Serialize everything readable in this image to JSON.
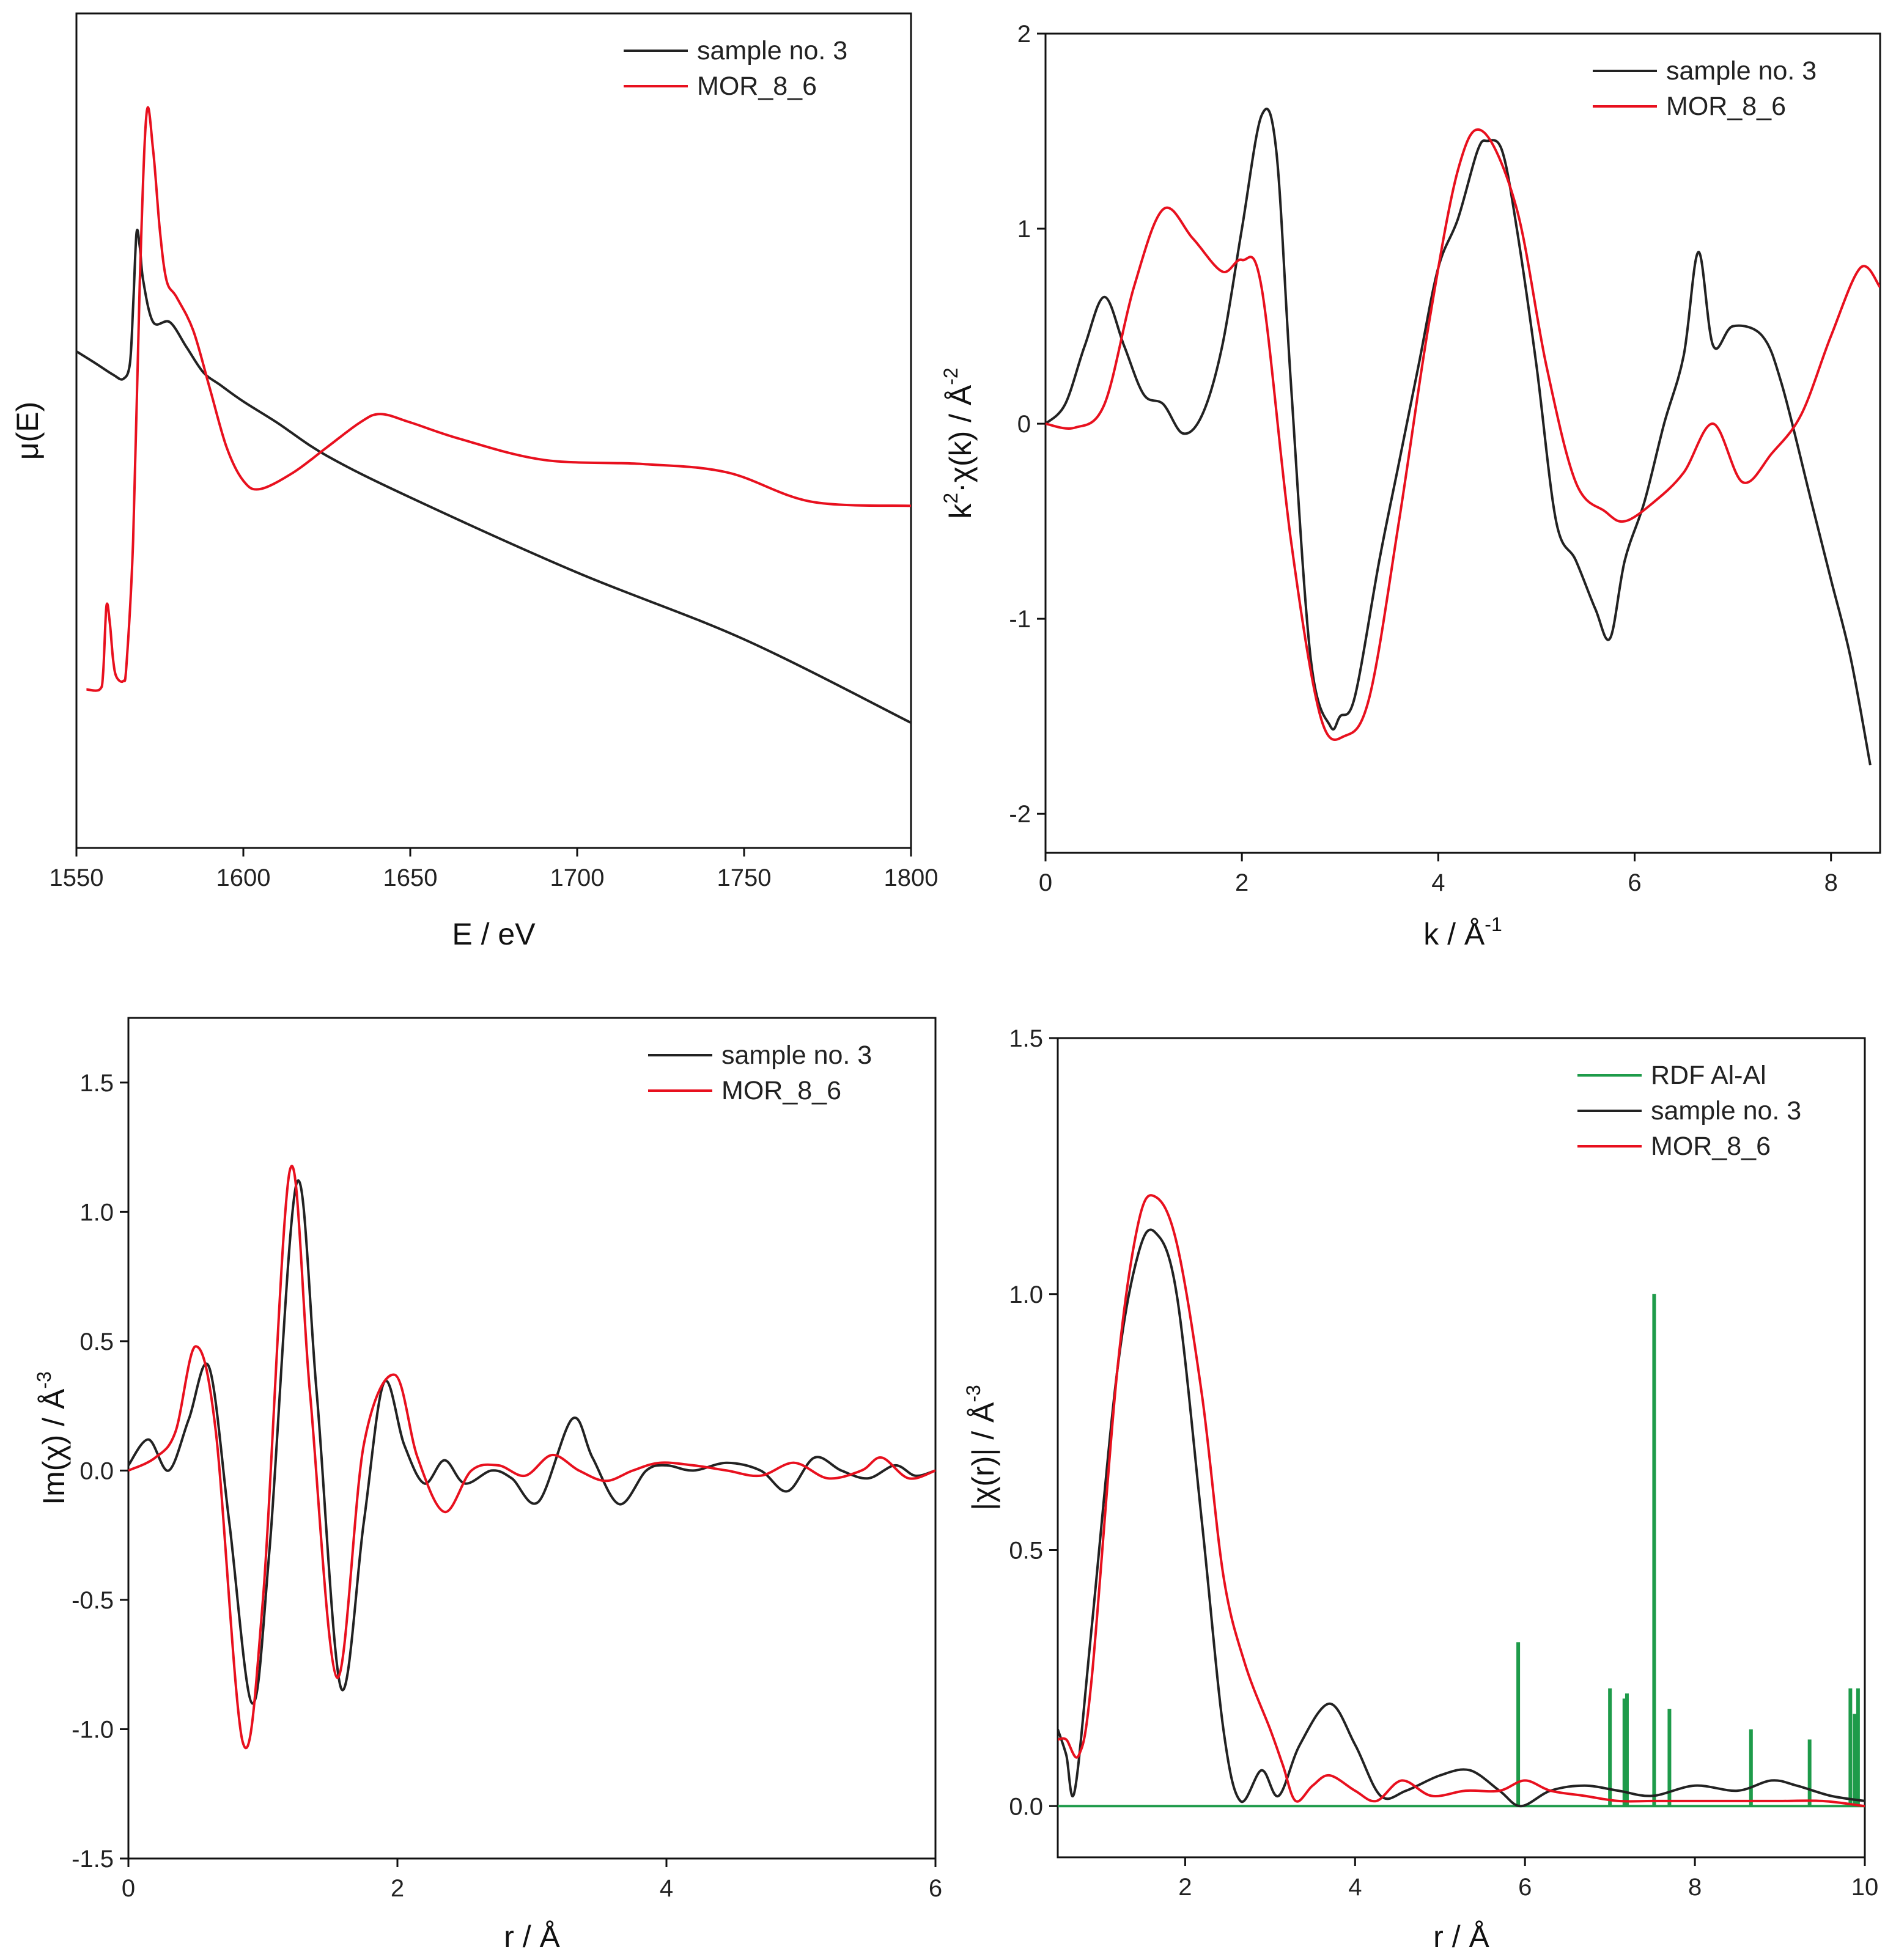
{
  "chart_data": [
    {
      "id": "xanes",
      "type": "line",
      "title": "",
      "xlabel": "E / eV",
      "ylabel": "μ(E)",
      "xlim": [
        1550,
        1800
      ],
      "ylim": [
        0,
        1.0
      ],
      "xticks": [
        1550,
        1600,
        1650,
        1700,
        1750,
        1800
      ],
      "xtick_labels": [
        "1550",
        "1600",
        "1650",
        "1700",
        "1750",
        "1800"
      ],
      "yticks": [],
      "ytick_labels": [],
      "legend": "top-right",
      "series": [
        {
          "name": "sample no. 3",
          "color": "#222222",
          "x": [
            1550,
            1556,
            1561,
            1564,
            1566,
            1567,
            1568,
            1569,
            1570,
            1573,
            1578,
            1583,
            1588,
            1593,
            1600,
            1610,
            1625,
            1650,
            1700,
            1750,
            1800
          ],
          "y": [
            0.595,
            0.58,
            0.567,
            0.562,
            0.58,
            0.65,
            0.737,
            0.72,
            0.68,
            0.63,
            0.63,
            0.6,
            0.57,
            0.555,
            0.535,
            0.51,
            0.47,
            0.42,
            0.33,
            0.25,
            0.15
          ]
        },
        {
          "name": "MOR_8_6",
          "color": "#e8101e",
          "x": [
            1553,
            1557,
            1558,
            1559,
            1560,
            1561,
            1562,
            1564,
            1565,
            1567,
            1569,
            1571,
            1573,
            1575,
            1577,
            1580,
            1585,
            1590,
            1595,
            1600,
            1605,
            1615,
            1625,
            1635,
            1641,
            1650,
            1665,
            1690,
            1720,
            1745,
            1770,
            1800
          ],
          "y": [
            0.19,
            0.19,
            0.21,
            0.29,
            0.27,
            0.225,
            0.205,
            0.2,
            0.22,
            0.37,
            0.68,
            0.88,
            0.835,
            0.74,
            0.68,
            0.66,
            0.62,
            0.55,
            0.48,
            0.44,
            0.43,
            0.45,
            0.48,
            0.51,
            0.52,
            0.51,
            0.49,
            0.465,
            0.46,
            0.45,
            0.415,
            0.41
          ]
        }
      ]
    },
    {
      "id": "kspace",
      "type": "line",
      "title": "",
      "xlabel": "k / Å",
      "xlabel_sup": "-1",
      "ylabel": "k",
      "ylabel_sup": "2",
      "ylabel_rest": "·χ(k) / Å",
      "ylabel_sup2": "-2",
      "xlim": [
        0,
        8.5
      ],
      "ylim": [
        -2.2,
        2.0
      ],
      "xticks": [
        0,
        2,
        4,
        6,
        8
      ],
      "xtick_labels": [
        "0",
        "2",
        "4",
        "6",
        "8"
      ],
      "yticks": [
        -2,
        -1,
        0,
        1,
        2
      ],
      "ytick_labels": [
        "-2",
        "-1",
        "0",
        "1",
        "2"
      ],
      "legend": "top-right",
      "series": [
        {
          "name": "sample no. 3",
          "color": "#222222",
          "x": [
            0,
            0.2,
            0.4,
            0.6,
            0.8,
            1.0,
            1.2,
            1.4,
            1.6,
            1.8,
            2.0,
            2.2,
            2.35,
            2.5,
            2.7,
            2.9,
            3.0,
            3.15,
            3.4,
            3.6,
            3.8,
            4.0,
            4.2,
            4.4,
            4.5,
            4.65,
            4.8,
            5.0,
            5.2,
            5.4,
            5.6,
            5.75,
            5.9,
            6.1,
            6.3,
            6.5,
            6.65,
            6.8,
            7.0,
            7.3,
            7.5,
            7.8,
            8.0,
            8.2,
            8.4
          ],
          "y": [
            0,
            0.1,
            0.4,
            0.65,
            0.4,
            0.15,
            0.1,
            -0.05,
            0.05,
            0.4,
            1.0,
            1.58,
            1.4,
            0.2,
            -1.2,
            -1.55,
            -1.5,
            -1.4,
            -0.7,
            -0.2,
            0.3,
            0.8,
            1.05,
            1.4,
            1.45,
            1.4,
            1.0,
            0.3,
            -0.5,
            -0.7,
            -0.95,
            -1.1,
            -0.7,
            -0.4,
            0.0,
            0.35,
            0.88,
            0.4,
            0.5,
            0.45,
            0.2,
            -0.4,
            -0.8,
            -1.2,
            -1.75
          ]
        },
        {
          "name": "MOR_8_6",
          "color": "#e8101e",
          "x": [
            0,
            0.3,
            0.6,
            0.9,
            1.2,
            1.5,
            1.8,
            2.0,
            2.2,
            2.5,
            2.8,
            3.05,
            3.3,
            3.6,
            3.9,
            4.2,
            4.45,
            4.8,
            5.1,
            5.4,
            5.7,
            5.9,
            6.2,
            6.5,
            6.8,
            7.1,
            7.4,
            7.7,
            8.0,
            8.3,
            8.5
          ],
          "y": [
            0,
            -0.02,
            0.1,
            0.7,
            1.1,
            0.95,
            0.78,
            0.84,
            0.7,
            -0.6,
            -1.5,
            -1.6,
            -1.4,
            -0.5,
            0.5,
            1.3,
            1.5,
            1.1,
            0.3,
            -0.3,
            -0.45,
            -0.5,
            -0.4,
            -0.25,
            0.0,
            -0.3,
            -0.15,
            0.05,
            0.45,
            0.8,
            0.7
          ]
        }
      ]
    },
    {
      "id": "imchi",
      "type": "line",
      "title": "",
      "xlabel": "r / Å",
      "ylabel": "Im(χ) / Å",
      "ylabel_sup": "-3",
      "xlim": [
        0,
        6
      ],
      "ylim": [
        -1.5,
        1.75
      ],
      "xticks": [
        0,
        2,
        4,
        6
      ],
      "xtick_labels": [
        "0",
        "2",
        "4",
        "6"
      ],
      "yticks": [
        -1.5,
        -1.0,
        -0.5,
        0.0,
        0.5,
        1.0,
        1.5
      ],
      "ytick_labels": [
        "-1.5",
        "-1.0",
        "-0.5",
        "0.0",
        "0.5",
        "1.0",
        "1.5"
      ],
      "legend": "top-right",
      "series": [
        {
          "name": "sample no. 3",
          "color": "#222222",
          "x": [
            0,
            0.15,
            0.3,
            0.45,
            0.6,
            0.75,
            0.92,
            1.05,
            1.25,
            1.4,
            1.58,
            1.75,
            1.9,
            2.05,
            2.2,
            2.35,
            2.5,
            2.7,
            2.85,
            3.05,
            3.3,
            3.45,
            3.65,
            3.85,
            4.0,
            4.2,
            4.45,
            4.7,
            4.9,
            5.1,
            5.3,
            5.5,
            5.7,
            5.85,
            6.0
          ],
          "y": [
            0.02,
            0.12,
            0.0,
            0.2,
            0.4,
            -0.2,
            -0.9,
            -0.3,
            1.11,
            0.3,
            -0.84,
            -0.2,
            0.34,
            0.1,
            -0.05,
            0.04,
            -0.05,
            0.0,
            -0.03,
            -0.12,
            0.2,
            0.05,
            -0.13,
            0.0,
            0.02,
            0.0,
            0.03,
            0.0,
            -0.08,
            0.05,
            0.0,
            -0.03,
            0.02,
            -0.02,
            0.0
          ]
        },
        {
          "name": "MOR_8_6",
          "color": "#e8101e",
          "x": [
            0,
            0.2,
            0.35,
            0.5,
            0.65,
            0.85,
            1.0,
            1.2,
            1.35,
            1.55,
            1.75,
            1.98,
            2.15,
            2.35,
            2.55,
            2.75,
            2.95,
            3.15,
            3.35,
            3.55,
            3.75,
            3.95,
            4.2,
            4.45,
            4.7,
            4.95,
            5.2,
            5.45,
            5.6,
            5.8,
            6.0
          ],
          "y": [
            0.0,
            0.05,
            0.15,
            0.48,
            0.15,
            -1.05,
            -0.5,
            1.16,
            0.3,
            -0.8,
            0.1,
            0.37,
            0.05,
            -0.16,
            0.0,
            0.02,
            -0.02,
            0.06,
            0.0,
            -0.04,
            0.0,
            0.03,
            0.02,
            0.0,
            -0.02,
            0.03,
            -0.03,
            0.0,
            0.05,
            -0.03,
            0.0
          ]
        }
      ]
    },
    {
      "id": "ftmag",
      "type": "line",
      "title": "",
      "xlabel": "r / Å",
      "ylabel": "|χ(r)| / Å",
      "ylabel_sup": "-3",
      "xlim": [
        0.5,
        10
      ],
      "ylim": [
        -0.1,
        1.5
      ],
      "xticks": [
        2,
        4,
        6,
        8,
        10
      ],
      "xtick_labels": [
        "2",
        "4",
        "6",
        "8",
        "10"
      ],
      "yticks": [
        0.0,
        0.5,
        1.0,
        1.5
      ],
      "ytick_labels": [
        "0.0",
        "0.5",
        "1.0",
        "1.5"
      ],
      "legend": "top-right",
      "series": [
        {
          "name": "RDF Al-Al",
          "color": "#1e9b4a",
          "spikes": true,
          "x": [
            5.92,
            7.0,
            7.17,
            7.2,
            7.52,
            7.7,
            8.66,
            9.35,
            9.83,
            9.88,
            9.92
          ],
          "y": [
            0.32,
            0.23,
            0.21,
            0.22,
            1.0,
            0.19,
            0.15,
            0.13,
            0.23,
            0.18,
            0.23
          ]
        },
        {
          "name": "sample no. 3",
          "color": "#222222",
          "x": [
            0.5,
            0.6,
            0.7,
            0.9,
            1.2,
            1.45,
            1.65,
            1.9,
            2.2,
            2.45,
            2.65,
            2.9,
            3.1,
            3.35,
            3.7,
            4.0,
            4.3,
            4.6,
            5.0,
            5.35,
            5.7,
            5.95,
            6.3,
            6.7,
            7.1,
            7.5,
            8.0,
            8.5,
            8.9,
            9.2,
            9.6,
            10.0
          ],
          "y": [
            0.15,
            0.1,
            0.03,
            0.35,
            0.85,
            1.08,
            1.12,
            1.0,
            0.55,
            0.15,
            0.01,
            0.07,
            0.02,
            0.12,
            0.2,
            0.12,
            0.02,
            0.03,
            0.06,
            0.07,
            0.03,
            0.0,
            0.03,
            0.04,
            0.03,
            0.02,
            0.04,
            0.03,
            0.05,
            0.04,
            0.02,
            0.01
          ]
        },
        {
          "name": "MOR_8_6",
          "color": "#e8101e",
          "x": [
            0.5,
            0.6,
            0.75,
            0.9,
            1.2,
            1.45,
            1.65,
            1.9,
            2.2,
            2.45,
            2.7,
            3.0,
            3.15,
            3.3,
            3.5,
            3.7,
            4.0,
            4.25,
            4.55,
            4.9,
            5.3,
            5.7,
            6.0,
            6.3,
            6.7,
            7.1,
            7.5,
            8.0,
            8.5,
            9.0,
            9.5,
            10.0
          ],
          "y": [
            0.13,
            0.13,
            0.1,
            0.25,
            0.85,
            1.14,
            1.19,
            1.1,
            0.8,
            0.45,
            0.28,
            0.15,
            0.08,
            0.01,
            0.04,
            0.06,
            0.03,
            0.01,
            0.05,
            0.02,
            0.03,
            0.03,
            0.05,
            0.03,
            0.02,
            0.01,
            0.01,
            0.01,
            0.01,
            0.01,
            0.01,
            0.0
          ]
        }
      ]
    }
  ]
}
